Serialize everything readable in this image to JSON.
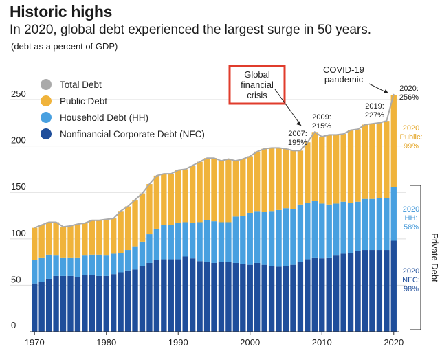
{
  "header": {
    "title": "Historic highs",
    "subtitle": "In 2020, global debt experienced the largest surge in 50 years.",
    "note": "(debt as a percent of GDP)"
  },
  "colors": {
    "nfc": "#1f4e9b",
    "hh": "#48a0e0",
    "public": "#f0b33b",
    "total": "#aaaaaa",
    "crisis_box": "#e03c2c"
  },
  "chart_data": {
    "type": "bar",
    "stacked": true,
    "x": [
      1970,
      1971,
      1972,
      1973,
      1974,
      1975,
      1976,
      1977,
      1978,
      1979,
      1980,
      1981,
      1982,
      1983,
      1984,
      1985,
      1986,
      1987,
      1988,
      1989,
      1990,
      1991,
      1992,
      1993,
      1994,
      1995,
      1996,
      1997,
      1998,
      1999,
      2000,
      2001,
      2002,
      2003,
      2004,
      2005,
      2006,
      2007,
      2008,
      2009,
      2010,
      2011,
      2012,
      2013,
      2014,
      2015,
      2016,
      2017,
      2018,
      2019,
      2020
    ],
    "series": [
      {
        "name": "Nonfinancial Corporate Debt (NFC)",
        "key": "nfc",
        "values": [
          52,
          54,
          57,
          60,
          60,
          60,
          59,
          61,
          61,
          60,
          60,
          62,
          64,
          66,
          67,
          71,
          74,
          77,
          78,
          78,
          78,
          81,
          79,
          76,
          75,
          74,
          75,
          75,
          74,
          73,
          72,
          74,
          72,
          71,
          70,
          71,
          72,
          75,
          78,
          80,
          79,
          80,
          82,
          84,
          85,
          87,
          88,
          88,
          88,
          88,
          98
        ]
      },
      {
        "name": "Household Debt (HH)",
        "key": "hh",
        "values": [
          25,
          26,
          26,
          22,
          20,
          20,
          21,
          21,
          22,
          23,
          22,
          22,
          21,
          22,
          25,
          26,
          31,
          34,
          37,
          37,
          39,
          37,
          38,
          42,
          45,
          45,
          43,
          43,
          50,
          52,
          56,
          56,
          57,
          59,
          61,
          62,
          60,
          62,
          61,
          61,
          59,
          57,
          56,
          56,
          54,
          53,
          55,
          55,
          56,
          56,
          58
        ]
      },
      {
        "name": "Public Debt",
        "key": "public",
        "values": [
          35,
          35,
          35,
          36,
          33,
          34,
          36,
          35,
          37,
          37,
          39,
          38,
          45,
          47,
          50,
          52,
          54,
          57,
          55,
          55,
          57,
          57,
          62,
          65,
          67,
          68,
          66,
          68,
          60,
          61,
          61,
          64,
          68,
          68,
          67,
          64,
          63,
          58,
          65,
          74,
          72,
          75,
          74,
          73,
          78,
          78,
          80,
          81,
          81,
          83,
          99
        ]
      }
    ],
    "total": {
      "name": "Total Debt",
      "key": "total",
      "values": [
        112,
        115,
        118,
        118,
        113,
        114,
        116,
        117,
        120,
        120,
        121,
        122,
        130,
        135,
        142,
        149,
        159,
        168,
        170,
        170,
        174,
        175,
        179,
        183,
        187,
        187,
        184,
        186,
        184,
        186,
        189,
        194,
        197,
        198,
        198,
        197,
        195,
        195,
        204,
        215,
        210,
        212,
        212,
        213,
        217,
        218,
        223,
        224,
        225,
        227,
        256
      ]
    },
    "ylim": [
      0,
      270
    ],
    "yticks": [
      0,
      50,
      100,
      150,
      200,
      250
    ],
    "xticks": [
      1970,
      1980,
      1990,
      2000,
      2010,
      2020
    ],
    "legend": {
      "placement": "top-left",
      "items": [
        {
          "label": "Total Debt",
          "key": "total"
        },
        {
          "label": "Public Debt",
          "key": "public"
        },
        {
          "label": "Household Debt (HH)",
          "key": "hh"
        },
        {
          "label": "Nonfinancial Corporate Debt (NFC)",
          "key": "nfc"
        }
      ]
    },
    "annotations": {
      "crisis": [
        "Global",
        "financial",
        "crisis"
      ],
      "covid": [
        "COVID-19",
        "pandemic"
      ],
      "y2007": [
        "2007:",
        "195%"
      ],
      "y2009": [
        "2009:",
        "215%"
      ],
      "y2019": [
        "2019:",
        "227%"
      ],
      "y2020": [
        "2020:",
        "256%"
      ],
      "public2020": [
        "2020",
        "Public:",
        "99%"
      ],
      "hh2020": [
        "2020",
        "HH:",
        "58%"
      ],
      "nfc2020": [
        "2020",
        "NFC:",
        "98%"
      ],
      "private": "Private Debt"
    }
  }
}
